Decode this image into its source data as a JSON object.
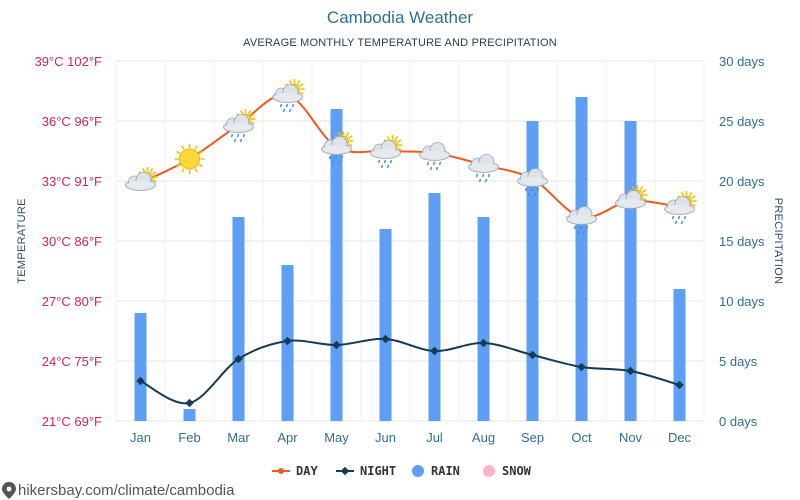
{
  "chart_data": {
    "type": "line+bar",
    "title": "Cambodia Weather",
    "subtitle": "AVERAGE MONTHLY TEMPERATURE AND PRECIPITATION",
    "categories": [
      "Jan",
      "Feb",
      "Mar",
      "Apr",
      "May",
      "Jun",
      "Jul",
      "Aug",
      "Sep",
      "Oct",
      "Nov",
      "Dec"
    ],
    "y_left": {
      "label": "TEMPERATURE",
      "ticks": [
        "39°C 102°F",
        "36°C 96°F",
        "33°C 91°F",
        "30°C 86°F",
        "27°C 80°F",
        "24°C 75°F",
        "21°C 69°F"
      ],
      "range": [
        21,
        39
      ]
    },
    "y_right": {
      "label": "PRECIPITATION",
      "ticks": [
        "30 days",
        "25 days",
        "20 days",
        "15 days",
        "10 days",
        "5 days",
        "0 days"
      ],
      "range": [
        0,
        30
      ]
    },
    "series": [
      {
        "name": "DAY",
        "type": "line",
        "unit": "°C",
        "values": [
          32.9,
          34.1,
          35.8,
          37.3,
          34.7,
          34.5,
          34.4,
          33.8,
          33.1,
          31.2,
          32.0,
          31.7
        ]
      },
      {
        "name": "NIGHT",
        "type": "line",
        "unit": "°C",
        "values": [
          23.0,
          21.9,
          24.1,
          25.0,
          24.8,
          25.1,
          24.5,
          24.9,
          24.3,
          23.7,
          23.5,
          22.8
        ]
      },
      {
        "name": "RAIN",
        "type": "bar",
        "unit": "days",
        "values": [
          9,
          1,
          17,
          13,
          26,
          16,
          19,
          17,
          25,
          27,
          25,
          11
        ]
      },
      {
        "name": "SNOW",
        "type": "bar",
        "unit": "days",
        "values": [
          0,
          0,
          0,
          0,
          0,
          0,
          0,
          0,
          0,
          0,
          0,
          0
        ]
      }
    ],
    "weather_icons": [
      "sun-cloud",
      "sun",
      "sun-cloud-rain",
      "sun-cloud-rain",
      "sun-cloud-rain",
      "sun-cloud-rain",
      "cloud-rain",
      "cloud-rain",
      "cloud-rain",
      "cloud-rain",
      "sun-cloud",
      "sun-cloud-rain"
    ],
    "grid": true,
    "legend_position": "bottom"
  },
  "colors": {
    "day": "#f05a1a",
    "night": "#163b52",
    "rain": "#5e9ef4",
    "snow": "#ffb3c8",
    "left_axis": "#d1245a",
    "right_axis": "#2e6f95",
    "grid": "#e6e6e6"
  },
  "footer": "hikersbay.com/climate/cambodia"
}
